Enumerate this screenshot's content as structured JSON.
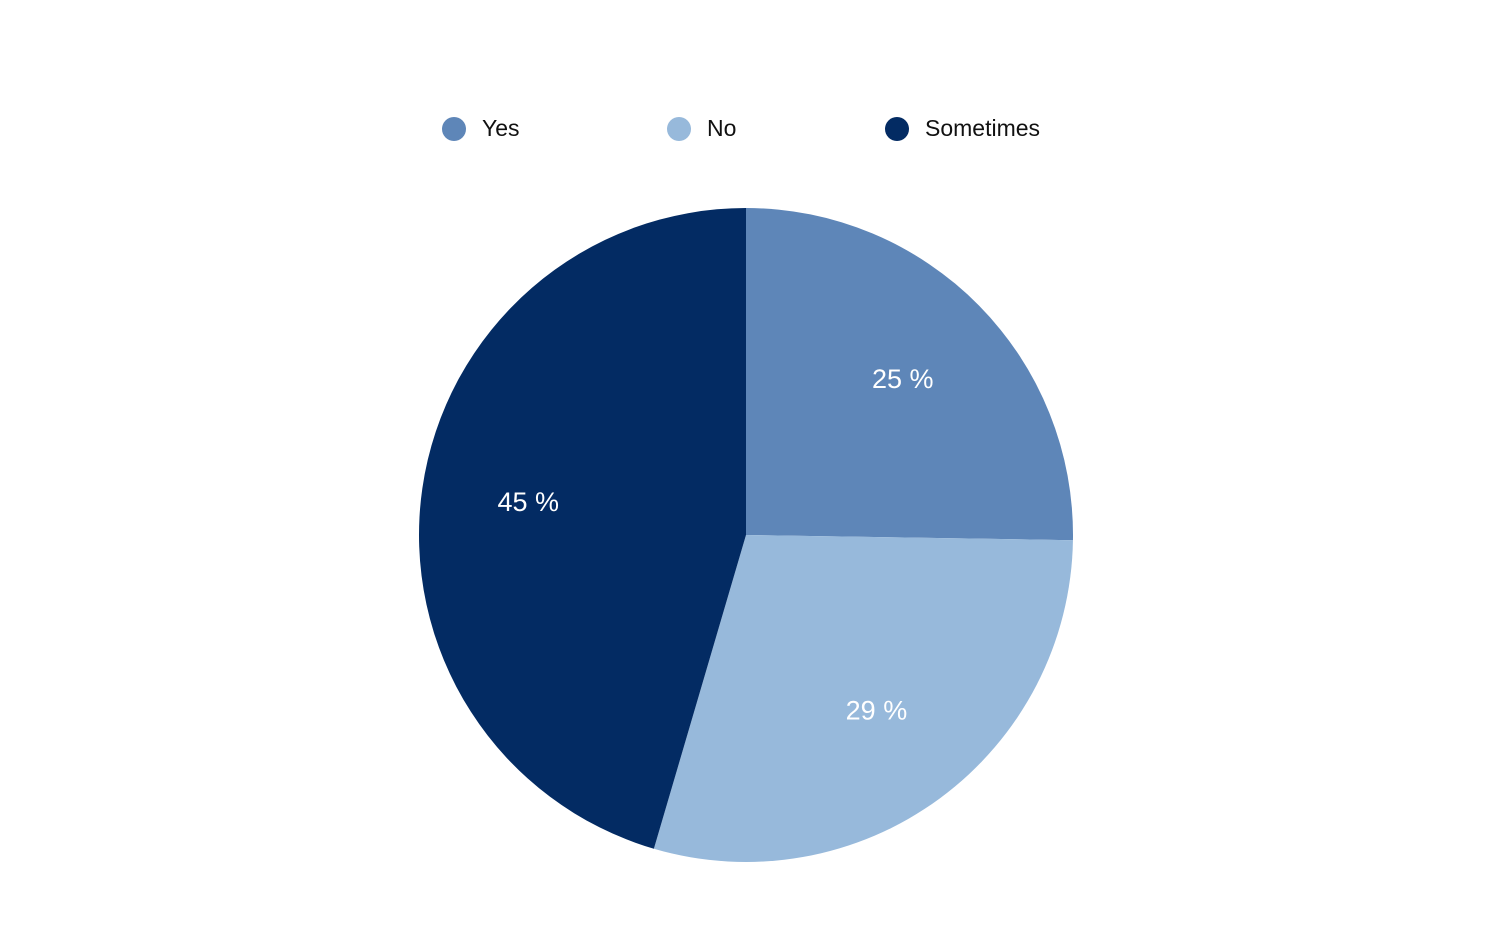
{
  "chart_data": {
    "type": "pie",
    "categories": [
      "Yes",
      "No",
      "Sometimes"
    ],
    "values": [
      25,
      29,
      45
    ],
    "value_labels": [
      "25 %",
      "29 %",
      "45 %"
    ],
    "colors": [
      "#5e86b8",
      "#97b9db",
      "#032b63"
    ],
    "legend": "top"
  }
}
